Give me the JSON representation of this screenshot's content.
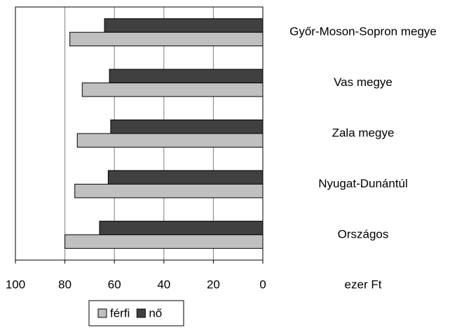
{
  "chart_data": {
    "type": "hbar",
    "categories": [
      "Győr-Moson-Sopron megye",
      "Vas megye",
      "Zala megye",
      "Nyugat-Dunántúl",
      "Országos"
    ],
    "series": [
      {
        "name": "férfi",
        "color": "#c0c0c0",
        "values": [
          78,
          73,
          75,
          76,
          80
        ]
      },
      {
        "name": "nő",
        "color": "#404040",
        "values": [
          64,
          62,
          61.5,
          62.5,
          66
        ]
      }
    ],
    "x_label": "ezer Ft",
    "xlim": [
      100,
      0
    ],
    "xticks": [
      100,
      80,
      60,
      40,
      20,
      0
    ],
    "grid": true,
    "legend": "bottom"
  }
}
